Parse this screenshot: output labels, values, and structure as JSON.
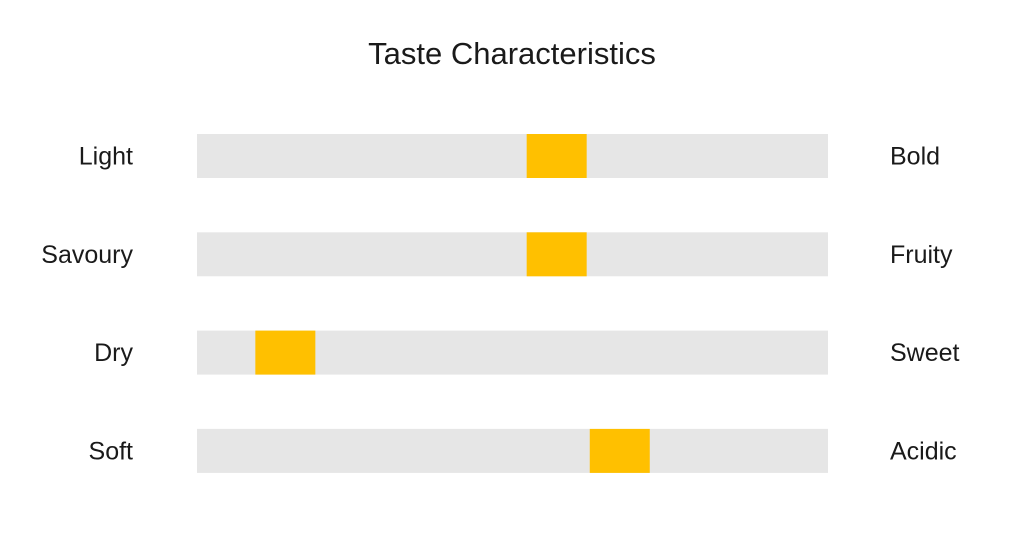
{
  "chart_data": {
    "type": "scale",
    "title": "Taste Characteristics",
    "left_labels": [
      "Light",
      "Savoury",
      "Dry",
      "Soft"
    ],
    "right_labels": [
      "Bold",
      "Fruity",
      "Sweet",
      "Acidic"
    ],
    "values": [
      5.7,
      5.7,
      1.4,
      6.7
    ],
    "xlim": [
      0,
      10
    ],
    "color": "#ffc000",
    "track_color": "#e6e6e6"
  }
}
